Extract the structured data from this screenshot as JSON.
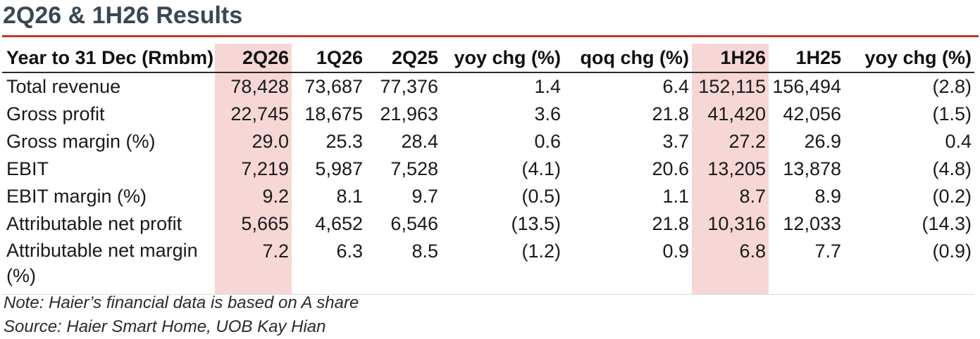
{
  "title": "2Q26 & 1H26 Results",
  "colors": {
    "title": "#3b4752",
    "rule": "#c0392b",
    "highlight": "#f6d7d6"
  },
  "table": {
    "headers": [
      "Year to 31 Dec (Rmbm)",
      "2Q26",
      "1Q26",
      "2Q25",
      "yoy chg (%)",
      "qoq chg (%)",
      "1H26",
      "1H25",
      "yoy chg (%)"
    ],
    "highlighted_columns": [
      "2Q26",
      "1H26"
    ],
    "rows": [
      [
        "Total revenue",
        "78,428",
        "73,687",
        "77,376",
        "1.4",
        "6.4",
        "152,115",
        "156,494",
        "(2.8)"
      ],
      [
        "Gross profit",
        "22,745",
        "18,675",
        "21,963",
        "3.6",
        "21.8",
        "41,420",
        "42,056",
        "(1.5)"
      ],
      [
        "Gross margin (%)",
        "29.0",
        "25.3",
        "28.4",
        "0.6",
        "3.7",
        "27.2",
        "26.9",
        "0.4"
      ],
      [
        "EBIT",
        "7,219",
        "5,987",
        "7,528",
        "(4.1)",
        "20.6",
        "13,205",
        "13,878",
        "(4.8)"
      ],
      [
        "EBIT margin (%)",
        "9.2",
        "8.1",
        "9.7",
        "(0.5)",
        "1.1",
        "8.7",
        "8.9",
        "(0.2)"
      ],
      [
        "Attributable net profit",
        "5,665",
        "4,652",
        "6,546",
        "(13.5)",
        "21.8",
        "10,316",
        "12,033",
        "(14.3)"
      ],
      [
        "Attributable net margin (%)",
        "7.2",
        "6.3",
        "8.5",
        "(1.2)",
        "0.9",
        "6.8",
        "7.7",
        "(0.9)"
      ]
    ]
  },
  "notes": {
    "note": "Note: Haier’s financial data is based on A share",
    "source": "Source: Haier Smart Home, UOB Kay Hian"
  }
}
